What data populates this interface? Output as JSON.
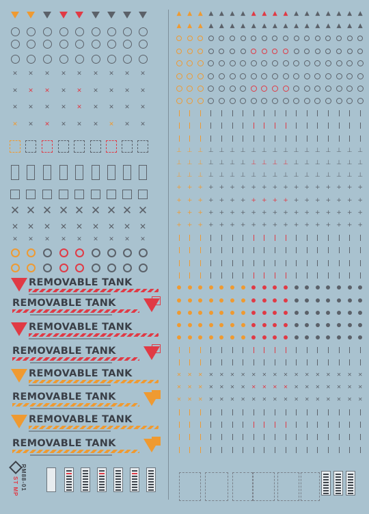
{
  "palette": {
    "background": "#a9c2cf",
    "orange": "#ef9a31",
    "red": "#e03a45",
    "gray": "#5b6169",
    "light": "#dfe6ea"
  },
  "removable_tank": {
    "title": "REMOVABLE TANK",
    "rows": [
      {
        "color": "red",
        "mirror": false
      },
      {
        "color": "red",
        "mirror": true
      },
      {
        "color": "red",
        "mirror": false
      },
      {
        "color": "red",
        "mirror": true
      },
      {
        "color": "orange",
        "mirror": false
      },
      {
        "color": "orange",
        "mirror": true
      },
      {
        "color": "orange",
        "mirror": false
      },
      {
        "color": "orange",
        "mirror": true
      }
    ]
  },
  "logo": {
    "code_top": "RM88-01",
    "code_bottom": "ST MP"
  },
  "icons": {
    "warning": "warning-triangle-icon",
    "target": "target-circle-icon",
    "cross": "cross-mark-icon",
    "marker": "caution-marker-icon"
  }
}
